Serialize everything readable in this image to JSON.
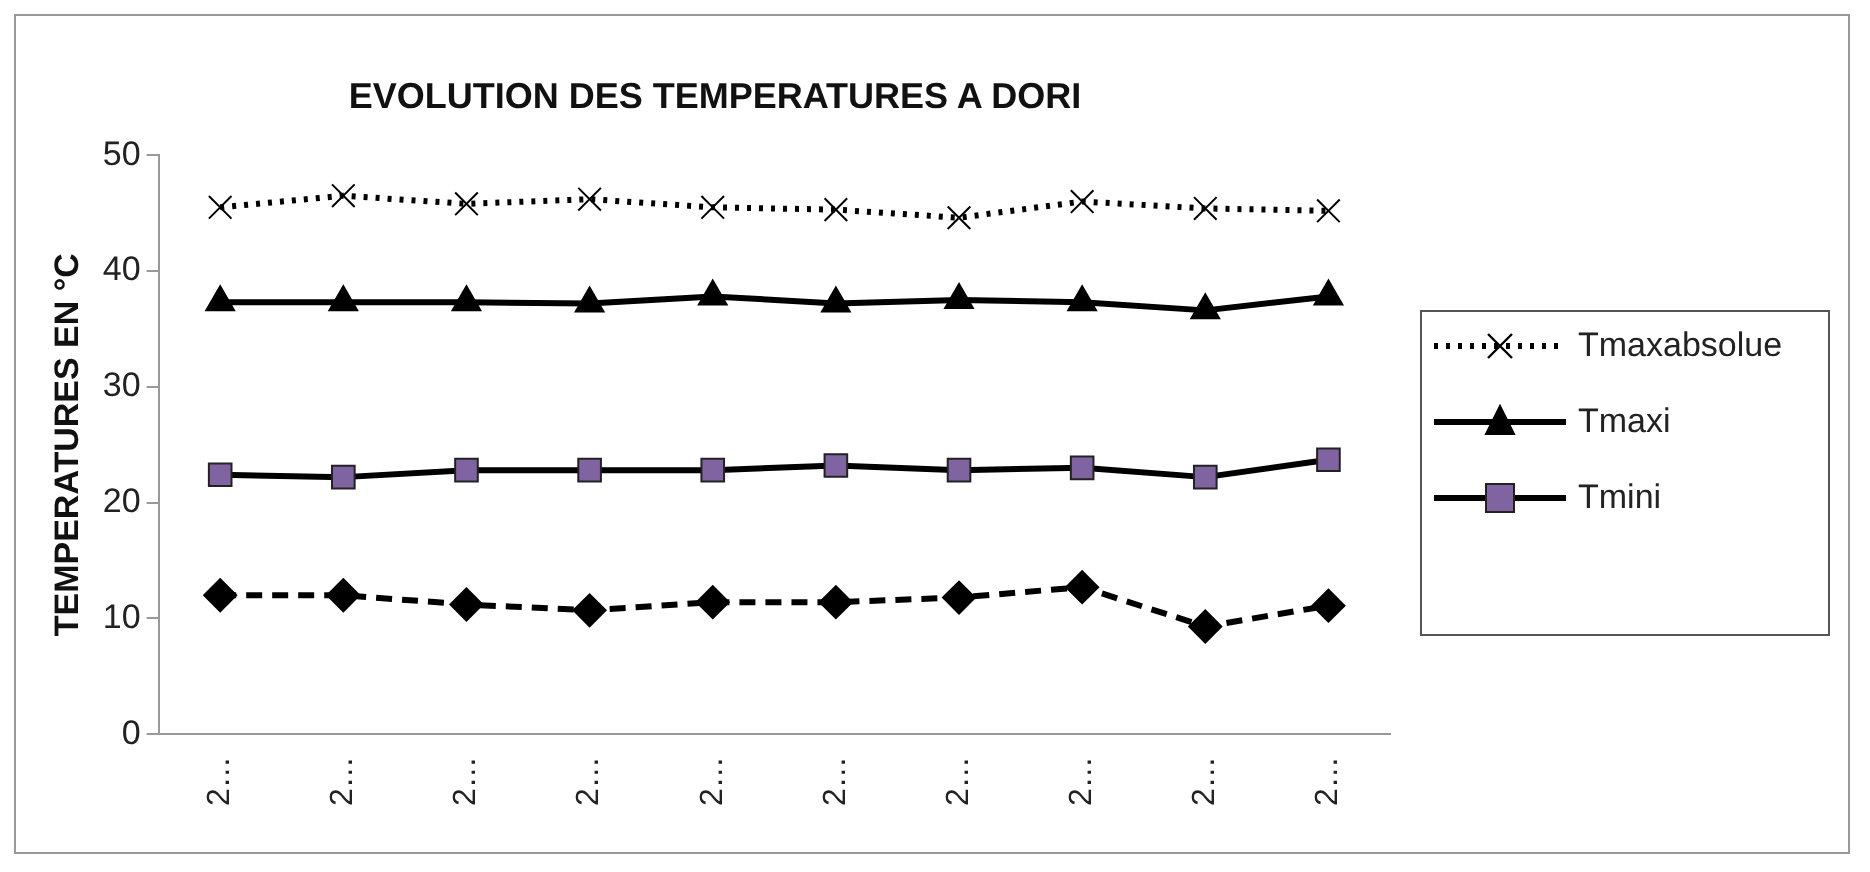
{
  "chart_data": {
    "type": "line",
    "title": "EVOLUTION DES TEMPERATURES A DORI",
    "ylabel": "TEMPERATURES EN °C",
    "categories": [
      "2…",
      "2…",
      "2…",
      "2…",
      "2…",
      "2…",
      "2…",
      "2…",
      "2…",
      "2…"
    ],
    "series": [
      {
        "name": "Tmaxabsolue",
        "color": "#000000",
        "marker": "cross",
        "line_style": "dotted",
        "values": [
          45.5,
          46.5,
          45.8,
          46.2,
          45.5,
          45.3,
          44.6,
          46,
          45.4,
          45.2
        ]
      },
      {
        "name": "Tmaxi",
        "color": "#000000",
        "marker": "triangle",
        "line_style": "solid",
        "values": [
          37.3,
          37.3,
          37.3,
          37.2,
          37.8,
          37.2,
          37.5,
          37.3,
          36.6,
          37.8
        ]
      },
      {
        "name": "Tmini",
        "color": "#8064a2",
        "marker": "square",
        "line_style": "solid",
        "values": [
          22.4,
          22.2,
          22.8,
          22.8,
          22.8,
          23.2,
          22.8,
          23,
          22.2,
          23.7
        ]
      },
      {
        "color": "#000000",
        "marker": "diamond",
        "line_style": "dashed",
        "values": [
          12,
          12,
          11.2,
          10.7,
          11.4,
          11.4,
          11.8,
          12.7,
          9.3,
          11.1
        ]
      }
    ],
    "ylim": [
      0,
      50
    ],
    "yticks": [
      0,
      10,
      20,
      30,
      40,
      50
    ],
    "grid": false,
    "legend": "right"
  }
}
